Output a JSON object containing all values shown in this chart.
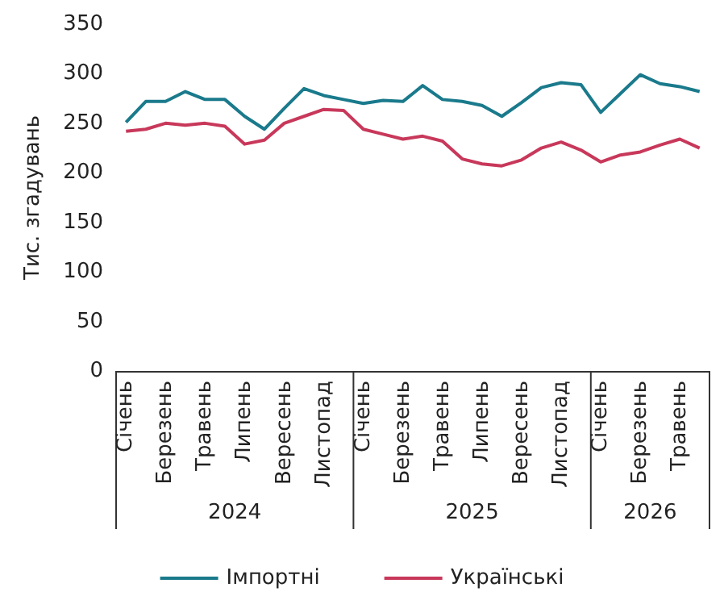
{
  "chart_data": {
    "type": "line",
    "ylabel": "Тис. згадувань",
    "categories": [
      "Січень",
      null,
      "Березень",
      null,
      "Травень",
      null,
      "Липень",
      null,
      "Вересень",
      null,
      "Листопад",
      null,
      "Січень",
      null,
      "Березень",
      null,
      "Травень",
      null,
      "Липень",
      null,
      "Вересень",
      null,
      "Листопад",
      null,
      "Січень",
      null,
      "Березень",
      null,
      "Травень",
      null
    ],
    "series": [
      {
        "name": "Імпортні",
        "color": "#1a7a8c",
        "values": [
          251,
          272,
          272,
          282,
          274,
          274,
          257,
          244,
          265,
          285,
          278,
          274,
          270,
          273,
          272,
          288,
          274,
          272,
          268,
          257,
          271,
          286,
          291,
          289,
          261,
          280,
          299,
          290,
          287,
          282
        ]
      },
      {
        "name": "Українські",
        "color": "#c8385a",
        "values": [
          242,
          244,
          250,
          248,
          250,
          247,
          229,
          233,
          250,
          257,
          264,
          263,
          244,
          239,
          234,
          237,
          232,
          214,
          209,
          207,
          213,
          225,
          231,
          223,
          211,
          218,
          221,
          228,
          234,
          225
        ]
      }
    ],
    "ylim": [
      0,
      350
    ],
    "yticks": [
      0,
      50,
      100,
      150,
      200,
      250,
      300,
      350
    ],
    "annotations": [
      "2024",
      "2025",
      "2026"
    ],
    "grid": false,
    "legend": "bottom",
    "marker": "none",
    "line_style": "solid"
  }
}
